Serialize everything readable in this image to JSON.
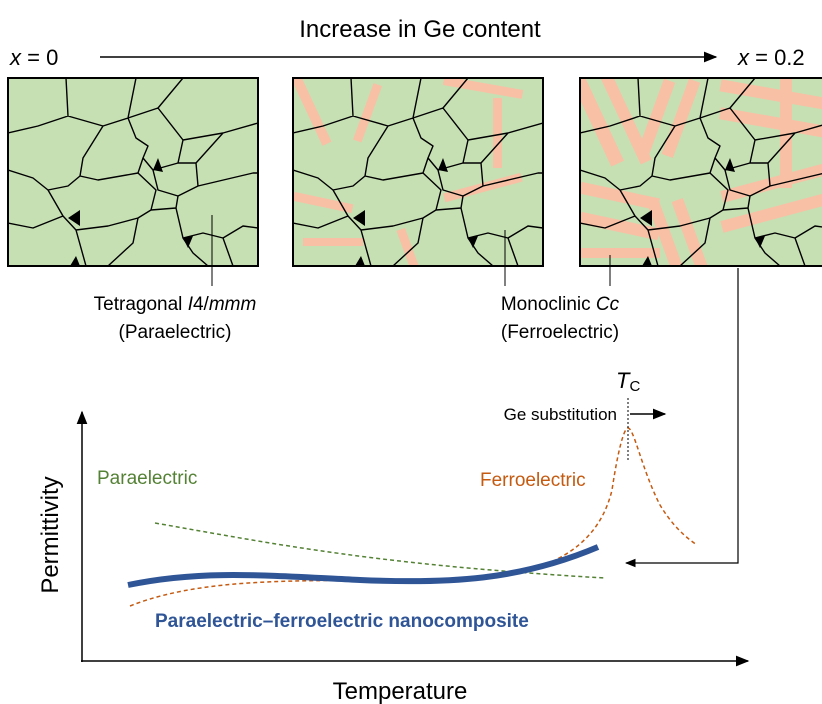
{
  "header": {
    "title": "Increase in Ge content",
    "start": {
      "var": "x",
      "rest": " = 0"
    },
    "end": {
      "var": "x",
      "rest": " = 0.2"
    }
  },
  "phases": [
    {
      "name": [
        "Tetragonal ",
        "I",
        "4/",
        "mmm"
      ],
      "kind": "(Paraelectric)"
    },
    {
      "name": [
        "Monoclinic ",
        "Cc"
      ],
      "kind": "(Ferroelectric)"
    }
  ],
  "plot": {
    "y_label": "Permittivity",
    "x_label": "Temperature",
    "curve_labels": {
      "paraelectric": "Paraelectric",
      "ferroelectric": "Ferroelectric",
      "nanocomposite": "Paraelectric–ferroelectric nanocomposite"
    },
    "curie": {
      "symbol": "T",
      "subscript": "C"
    },
    "shift_label": "Ge substitution"
  }
}
